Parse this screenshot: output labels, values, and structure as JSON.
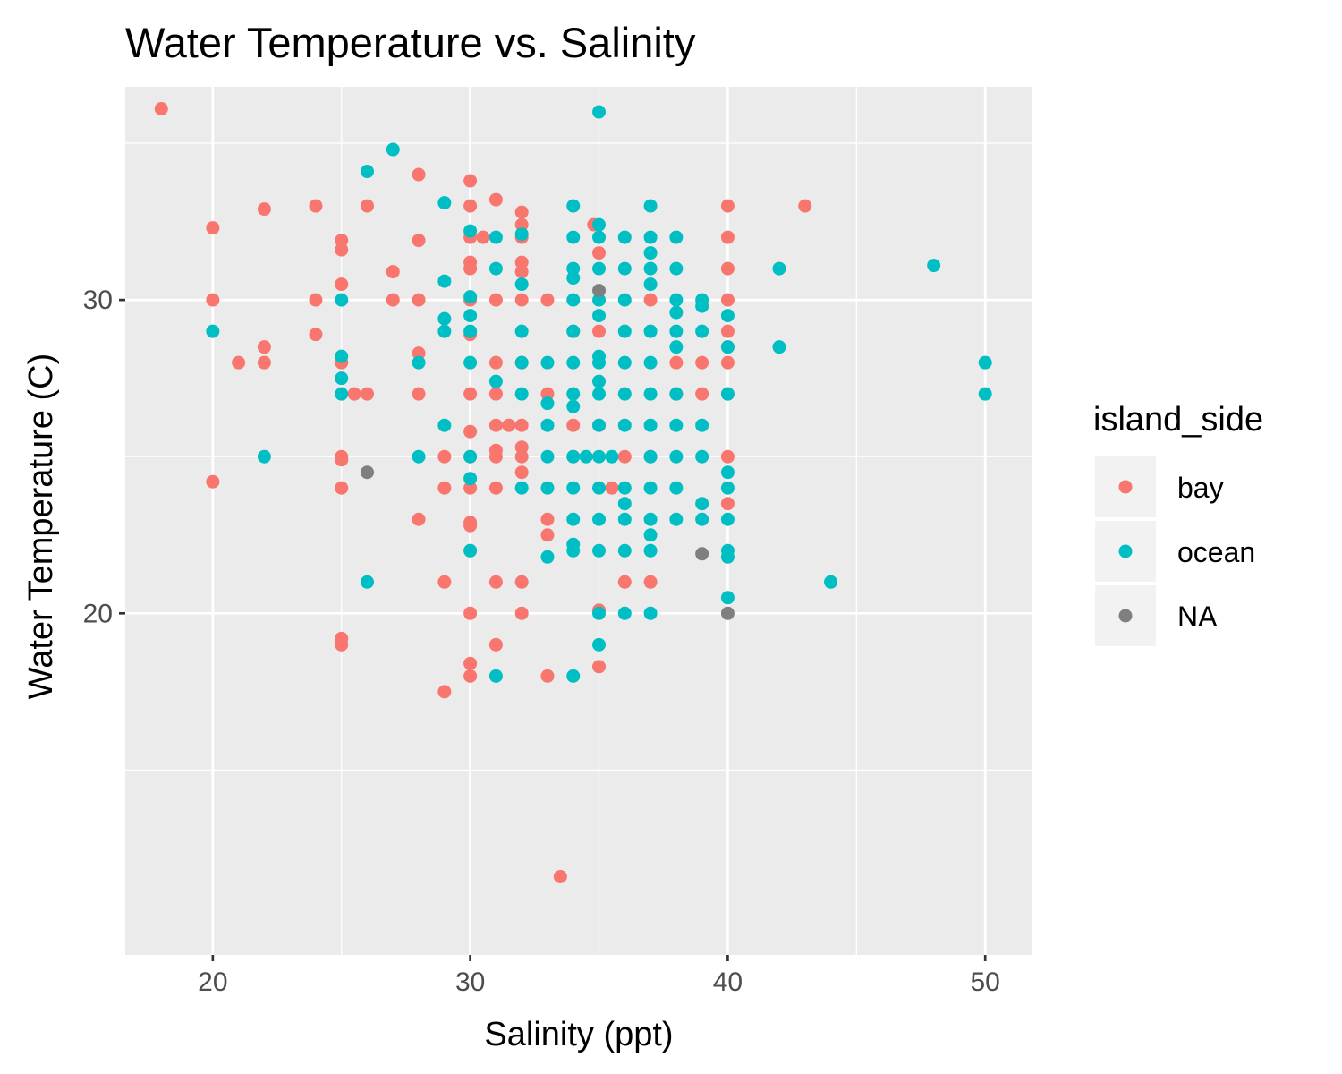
{
  "chart_data": {
    "type": "scatter",
    "title": "Water Temperature vs. Salinity",
    "xlabel": "Salinity (ppt)",
    "ylabel": "Water Temperature (C)",
    "xlim": [
      16.6,
      51.8
    ],
    "ylim": [
      9.1,
      36.8
    ],
    "x_ticks": [
      20,
      30,
      40,
      50
    ],
    "x_tick_labels": [
      "20",
      "30",
      "40",
      "50"
    ],
    "x_minor_gridlines": [
      25,
      35,
      45
    ],
    "y_ticks": [
      20,
      30
    ],
    "y_tick_labels": [
      "20",
      "30"
    ],
    "y_minor_gridlines": [
      15,
      25,
      35
    ],
    "grid": true,
    "panel_background": "#ebebeb",
    "grid_color": "#ffffff",
    "legend": {
      "title": "island_side",
      "position": "right",
      "entries": [
        {
          "label": "bay",
          "color": "#f8766d"
        },
        {
          "label": "ocean",
          "color": "#00bfc4"
        },
        {
          "label": "NA",
          "color": "#7f7f7f"
        }
      ]
    },
    "series": [
      {
        "name": "bay",
        "color": "#f8766d",
        "points": [
          [
            18,
            36.1
          ],
          [
            20,
            32.3
          ],
          [
            20,
            30
          ],
          [
            20,
            24.2
          ],
          [
            21,
            28
          ],
          [
            22,
            32.9
          ],
          [
            22,
            28.5
          ],
          [
            22,
            28
          ],
          [
            24,
            33
          ],
          [
            24,
            30
          ],
          [
            24,
            28.9
          ],
          [
            25,
            31.9
          ],
          [
            25,
            31.6
          ],
          [
            25,
            30.5
          ],
          [
            25,
            28
          ],
          [
            25,
            25
          ],
          [
            25,
            24.9
          ],
          [
            25,
            24
          ],
          [
            25,
            19.2
          ],
          [
            25,
            19
          ],
          [
            25.5,
            27
          ],
          [
            26,
            33
          ],
          [
            26,
            27
          ],
          [
            27,
            30.9
          ],
          [
            27,
            30
          ],
          [
            28,
            34
          ],
          [
            28,
            31.9
          ],
          [
            28,
            30
          ],
          [
            28,
            28.3
          ],
          [
            28,
            27
          ],
          [
            28,
            23
          ],
          [
            29,
            25
          ],
          [
            29,
            24
          ],
          [
            29,
            21
          ],
          [
            29,
            17.5
          ],
          [
            30,
            33.8
          ],
          [
            30,
            33
          ],
          [
            30,
            32
          ],
          [
            30,
            31.2
          ],
          [
            30,
            31
          ],
          [
            30,
            30
          ],
          [
            30,
            28.9
          ],
          [
            30,
            27
          ],
          [
            30,
            25.8
          ],
          [
            30,
            25
          ],
          [
            30,
            24
          ],
          [
            30,
            22.9
          ],
          [
            30,
            22.8
          ],
          [
            30,
            22
          ],
          [
            30,
            20
          ],
          [
            30,
            18.4
          ],
          [
            30,
            18
          ],
          [
            30.5,
            32
          ],
          [
            31,
            33.2
          ],
          [
            31,
            30
          ],
          [
            31,
            28
          ],
          [
            31,
            27
          ],
          [
            31,
            26
          ],
          [
            31,
            25.2
          ],
          [
            31,
            25
          ],
          [
            31,
            24
          ],
          [
            31,
            21
          ],
          [
            31,
            19
          ],
          [
            31.5,
            26
          ],
          [
            32,
            32.8
          ],
          [
            32,
            32.4
          ],
          [
            32,
            32
          ],
          [
            32,
            31.2
          ],
          [
            32,
            30.9
          ],
          [
            32,
            30
          ],
          [
            32,
            28
          ],
          [
            32,
            26
          ],
          [
            32,
            25.3
          ],
          [
            32,
            25
          ],
          [
            32,
            24.5
          ],
          [
            32,
            21
          ],
          [
            32,
            20
          ],
          [
            33,
            30
          ],
          [
            33,
            27
          ],
          [
            33,
            23
          ],
          [
            33,
            22.5
          ],
          [
            33,
            18
          ],
          [
            33.5,
            11.6
          ],
          [
            34,
            29
          ],
          [
            34,
            26
          ],
          [
            34,
            25
          ],
          [
            34.8,
            32.4
          ],
          [
            35,
            31.5
          ],
          [
            35,
            29
          ],
          [
            35,
            26
          ],
          [
            35,
            20.1
          ],
          [
            35,
            18.3
          ],
          [
            35.5,
            24
          ],
          [
            36,
            25
          ],
          [
            36,
            21
          ],
          [
            37,
            30
          ],
          [
            37,
            25
          ],
          [
            37,
            21
          ],
          [
            38,
            28
          ],
          [
            38,
            27
          ],
          [
            39,
            28
          ],
          [
            39,
            27
          ],
          [
            40,
            33
          ],
          [
            40,
            32
          ],
          [
            40,
            31
          ],
          [
            40,
            30
          ],
          [
            40,
            29
          ],
          [
            40,
            28.5
          ],
          [
            40,
            28
          ],
          [
            40,
            27
          ],
          [
            40,
            25
          ],
          [
            40,
            23.5
          ],
          [
            43,
            33
          ]
        ]
      },
      {
        "name": "ocean",
        "color": "#00bfc4",
        "points": [
          [
            20,
            29
          ],
          [
            22,
            25
          ],
          [
            25,
            30
          ],
          [
            25,
            28.2
          ],
          [
            25,
            27.5
          ],
          [
            25,
            27
          ],
          [
            26,
            34.1
          ],
          [
            26,
            21
          ],
          [
            27,
            34.8
          ],
          [
            28,
            28
          ],
          [
            28,
            25
          ],
          [
            29,
            33.1
          ],
          [
            29,
            30.6
          ],
          [
            29,
            29.4
          ],
          [
            29,
            29
          ],
          [
            29,
            26
          ],
          [
            30,
            32.2
          ],
          [
            30,
            30.1
          ],
          [
            30,
            29.5
          ],
          [
            30,
            29
          ],
          [
            30,
            28
          ],
          [
            30,
            25
          ],
          [
            30,
            24.3
          ],
          [
            30,
            22
          ],
          [
            31,
            32
          ],
          [
            31,
            31
          ],
          [
            31,
            27.4
          ],
          [
            31,
            18
          ],
          [
            32,
            32.1
          ],
          [
            32,
            30.5
          ],
          [
            32,
            29
          ],
          [
            32,
            28
          ],
          [
            32,
            27
          ],
          [
            32,
            24
          ],
          [
            33,
            28
          ],
          [
            33,
            26.7
          ],
          [
            33,
            26
          ],
          [
            33,
            25
          ],
          [
            33,
            24
          ],
          [
            33,
            21.8
          ],
          [
            34,
            33
          ],
          [
            34,
            32
          ],
          [
            34,
            31
          ],
          [
            34,
            30.7
          ],
          [
            34,
            30
          ],
          [
            34,
            29
          ],
          [
            34,
            28
          ],
          [
            34,
            27
          ],
          [
            34,
            26.6
          ],
          [
            34,
            25
          ],
          [
            34,
            24
          ],
          [
            34,
            23
          ],
          [
            34,
            22.2
          ],
          [
            34,
            22
          ],
          [
            34,
            18
          ],
          [
            34.5,
            25
          ],
          [
            35,
            36
          ],
          [
            35,
            32.4
          ],
          [
            35,
            32
          ],
          [
            35,
            31
          ],
          [
            35,
            30
          ],
          [
            35,
            29.5
          ],
          [
            35,
            28.2
          ],
          [
            35,
            28
          ],
          [
            35,
            27.4
          ],
          [
            35,
            27
          ],
          [
            35,
            26
          ],
          [
            35,
            25
          ],
          [
            35,
            24
          ],
          [
            35,
            23
          ],
          [
            35,
            22
          ],
          [
            35,
            20
          ],
          [
            35,
            19
          ],
          [
            35.5,
            25
          ],
          [
            36,
            32
          ],
          [
            36,
            31
          ],
          [
            36,
            30
          ],
          [
            36,
            29
          ],
          [
            36,
            28
          ],
          [
            36,
            27
          ],
          [
            36,
            26
          ],
          [
            36,
            24
          ],
          [
            36,
            23.5
          ],
          [
            36,
            23
          ],
          [
            36,
            22
          ],
          [
            36,
            20
          ],
          [
            37,
            33
          ],
          [
            37,
            32
          ],
          [
            37,
            31.5
          ],
          [
            37,
            31
          ],
          [
            37,
            30.5
          ],
          [
            37,
            29
          ],
          [
            37,
            28
          ],
          [
            37,
            27
          ],
          [
            37,
            26
          ],
          [
            37,
            25
          ],
          [
            37,
            24
          ],
          [
            37,
            23
          ],
          [
            37,
            22.5
          ],
          [
            37,
            22
          ],
          [
            37,
            20
          ],
          [
            38,
            32
          ],
          [
            38,
            31
          ],
          [
            38,
            30
          ],
          [
            38,
            29.6
          ],
          [
            38,
            29
          ],
          [
            38,
            28.5
          ],
          [
            38,
            27
          ],
          [
            38,
            26
          ],
          [
            38,
            25
          ],
          [
            38,
            24
          ],
          [
            38,
            23
          ],
          [
            39,
            30
          ],
          [
            39,
            29.8
          ],
          [
            39,
            29
          ],
          [
            39,
            26
          ],
          [
            39,
            25
          ],
          [
            39,
            23.5
          ],
          [
            39,
            23
          ],
          [
            40,
            29.5
          ],
          [
            40,
            28.5
          ],
          [
            40,
            27
          ],
          [
            40,
            24.5
          ],
          [
            40,
            24
          ],
          [
            40,
            23
          ],
          [
            40,
            22
          ],
          [
            40,
            21.8
          ],
          [
            40,
            20.5
          ],
          [
            42,
            31
          ],
          [
            42,
            28.5
          ],
          [
            44,
            21
          ],
          [
            48,
            31.1
          ],
          [
            50,
            28
          ],
          [
            50,
            27
          ]
        ]
      },
      {
        "name": "NA",
        "color": "#7f7f7f",
        "points": [
          [
            26,
            24.5
          ],
          [
            35,
            30.3
          ],
          [
            39,
            21.9
          ],
          [
            40,
            20
          ]
        ]
      }
    ]
  }
}
